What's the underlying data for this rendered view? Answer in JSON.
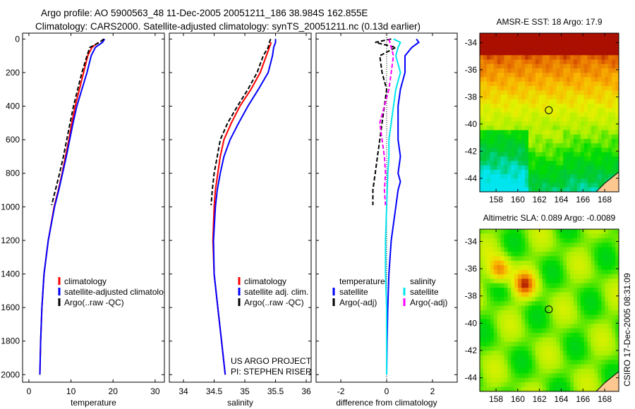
{
  "title": {
    "line1": "Argo profile: AO 5900563_48 11-Dec-2005 20051211_186 38.984S 162.855E",
    "line2": "Climatology: CARS2000. Satellite-adjusted climatology: synTS_20051211.nc (0.13d earlier)"
  },
  "side_label": "CSIRO 17-Dec-2005 08:31:09",
  "project": {
    "line1": "US ARGO PROJECT",
    "line2": "PI: STEPHEN RISER"
  },
  "chart_data": [
    {
      "type": "line",
      "id": "temp",
      "xlabel": "temperature",
      "xlim": [
        -1.5,
        32.2
      ],
      "ylim": [
        -35,
        2045
      ],
      "xticks": [
        0,
        10,
        20,
        30
      ],
      "yticks": [
        0,
        200,
        400,
        600,
        800,
        1000,
        1200,
        1400,
        1600,
        1800,
        2000
      ],
      "legend": [
        "climatology",
        "satellite-adjusted climatology",
        "Argo(..raw -QC)"
      ],
      "series": [
        {
          "name": "climatology",
          "color": "#ff0000",
          "depth": [
            20,
            50,
            100,
            200,
            300,
            400,
            500,
            600,
            700,
            800,
            900,
            1000,
            1200,
            1400,
            1600,
            1800,
            2000
          ],
          "x": [
            16.5,
            15,
            14,
            13,
            12,
            11,
            10.2,
            9.5,
            8.7,
            7.9,
            7,
            6,
            4.6,
            3.6,
            3.1,
            2.8,
            2.6
          ]
        },
        {
          "name": "satellite-adjusted climatology",
          "color": "#0000ff",
          "depth": [
            0,
            20,
            50,
            100,
            200,
            300,
            400,
            500,
            600,
            700,
            800,
            900,
            1000,
            1200,
            1400,
            1600,
            1800,
            2000
          ],
          "x": [
            18,
            17.5,
            15.8,
            14.8,
            13.8,
            12.6,
            11.4,
            10.5,
            9.7,
            8.9,
            8,
            7.1,
            6.1,
            4.6,
            3.6,
            3.1,
            2.8,
            2.6
          ]
        },
        {
          "name": "Argo(..raw -QC)",
          "color": "#000000",
          "dash": true,
          "depth": [
            0,
            20,
            50,
            100,
            200,
            300,
            400,
            500,
            600,
            700,
            800,
            900,
            990
          ],
          "x": [
            17.8,
            16.8,
            14.5,
            13.8,
            12.6,
            11.6,
            10.6,
            9.8,
            9,
            8.2,
            7.3,
            6.3,
            5.4
          ]
        }
      ]
    },
    {
      "type": "line",
      "id": "sal",
      "xlabel": "salinity",
      "xlim": [
        33.77,
        36.08
      ],
      "ylim": [
        -35,
        2045
      ],
      "xticks": [
        34,
        34.5,
        35,
        35.5,
        36
      ],
      "xticklabels": [
        "34",
        "34.5",
        "35",
        "35.5",
        "36"
      ],
      "legend": [
        "climatology",
        "satellite adj. clim.",
        "Argo(..raw -QC)"
      ],
      "series": [
        {
          "name": "climatology",
          "color": "#ff0000",
          "depth": [
            20,
            50,
            100,
            200,
            300,
            400,
            500,
            600,
            700,
            800,
            900,
            1000,
            1200,
            1400,
            1600,
            1800,
            2000
          ],
          "x": [
            35.43,
            35.4,
            35.35,
            35.25,
            35.1,
            34.92,
            34.78,
            34.66,
            34.6,
            34.56,
            34.52,
            34.5,
            34.48,
            34.5,
            34.56,
            34.62,
            34.68
          ]
        },
        {
          "name": "satellite adj. clim.",
          "color": "#0000ff",
          "depth": [
            0,
            20,
            50,
            100,
            200,
            300,
            400,
            500,
            600,
            700,
            800,
            900,
            1000,
            1200,
            1400,
            1600,
            1800,
            2000
          ],
          "x": [
            35.5,
            35.5,
            35.47,
            35.45,
            35.38,
            35.22,
            35.05,
            34.9,
            34.76,
            34.66,
            34.6,
            34.55,
            34.52,
            34.49,
            34.5,
            34.56,
            34.62,
            34.68
          ]
        },
        {
          "name": "Argo(..raw -QC)",
          "color": "#000000",
          "dash": true,
          "depth": [
            0,
            20,
            50,
            100,
            200,
            300,
            400,
            500,
            600,
            700,
            800,
            900,
            990
          ],
          "x": [
            35.42,
            35.4,
            35.38,
            35.3,
            35.2,
            35.05,
            34.88,
            34.72,
            34.6,
            34.55,
            34.5,
            34.47,
            34.45
          ]
        }
      ]
    },
    {
      "type": "line",
      "id": "diff",
      "xlabel": "difference from climatology",
      "xlim": [
        -3.08,
        3.08
      ],
      "ylim": [
        -35,
        2045
      ],
      "xticks": [
        -2,
        0,
        2
      ],
      "legend_headers": [
        "temperature",
        "salinity"
      ],
      "legend": [
        "satellite",
        "Argo(-adj)",
        "satellite",
        "Argo(-adj)"
      ],
      "series": [
        {
          "name": "temperature satellite",
          "color": "#0000ff",
          "depth": [
            0,
            20,
            50,
            100,
            200,
            300,
            400,
            500,
            600,
            700,
            800,
            850,
            900,
            1000,
            1200,
            1400,
            1600,
            1800,
            2000
          ],
          "x": [
            1.3,
            1.4,
            1.1,
            0.8,
            0.8,
            0.6,
            0.5,
            0.5,
            0.5,
            0.6,
            0.5,
            0.6,
            0.5,
            0.4,
            0.2,
            0.1,
            0.05,
            0.02,
            0.0
          ]
        },
        {
          "name": "temperature Argo(-adj)",
          "color": "#000000",
          "dash": true,
          "depth": [
            0,
            20,
            50,
            100,
            200,
            300,
            400,
            500,
            600,
            700,
            800,
            900,
            990
          ],
          "x": [
            0.2,
            -0.5,
            0.4,
            -0.3,
            -0.2,
            0,
            -0.1,
            -0.2,
            -0.3,
            -0.4,
            -0.5,
            -0.6,
            -0.6
          ]
        },
        {
          "name": "salinity satellite",
          "color": "#00e5ee",
          "depth": [
            0,
            20,
            50,
            100,
            200,
            300,
            400,
            500,
            600,
            700,
            800,
            1000,
            1200,
            1400,
            1600,
            1800,
            2000
          ],
          "x": [
            0.3,
            0.6,
            0.5,
            0.4,
            0.6,
            0.4,
            0.3,
            0.2,
            0.1,
            0.1,
            0.05,
            0.0,
            -0.05,
            -0.05,
            0.0,
            0.0,
            0.0
          ]
        },
        {
          "name": "salinity Argo(-adj)",
          "color": "#ff00ff",
          "dash": true,
          "depth": [
            0,
            50,
            100,
            200,
            300,
            400,
            500,
            600,
            700,
            800,
            900,
            990
          ],
          "x": [
            0.1,
            0.2,
            0.3,
            0.2,
            0.1,
            -0.1,
            -0.3,
            -0.2,
            -0.1,
            -0.05,
            -0.1,
            -0.05
          ]
        }
      ]
    },
    {
      "type": "heatmap",
      "id": "sst",
      "title": "AMSR-E SST: 18 Argo: 17.9",
      "xlim": [
        156.5,
        169.3
      ],
      "ylim": [
        -45,
        -33.3
      ],
      "xticks": [
        158,
        160,
        162,
        164,
        166,
        168
      ],
      "yticks": [
        -34,
        -36,
        -38,
        -40,
        -42,
        -44
      ],
      "marker": [
        162.855,
        -38.984
      ]
    },
    {
      "type": "heatmap",
      "id": "sla",
      "title": "Altimetric SLA: 0.089 Argo: -0.0089",
      "xlim": [
        156.5,
        169.3
      ],
      "ylim": [
        -45,
        -33.1
      ],
      "xticks": [
        158,
        160,
        162,
        164,
        166,
        168
      ],
      "yticks": [
        -34,
        -36,
        -38,
        -40,
        -42,
        -44
      ],
      "marker": [
        162.855,
        -38.984
      ]
    }
  ]
}
